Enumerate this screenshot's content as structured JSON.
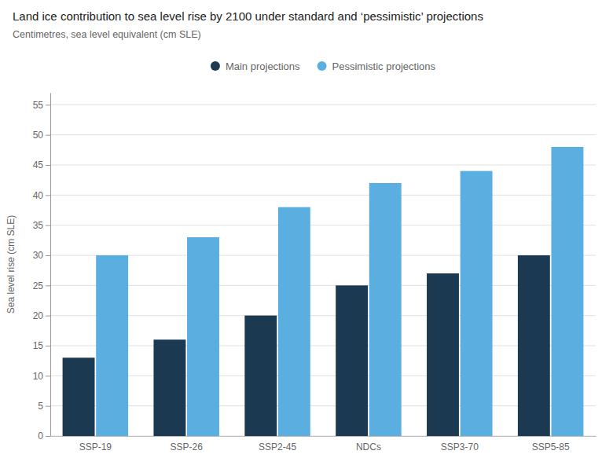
{
  "chart_data": {
    "type": "bar",
    "title": "Land ice contribution to sea level rise by 2100 under standard and ‘pessimistic’ projections",
    "subtitle": "Centimetres, sea level equivalent (cm SLE)",
    "ylabel": "Sea level rise (cm SLE)",
    "categories": [
      "SSP-19",
      "SSP-26",
      "SSP2-45",
      "NDCs",
      "SSP3-70",
      "SSP5-85"
    ],
    "series": [
      {
        "name": "Main projections",
        "color": "#1b3a52",
        "values": [
          13,
          16,
          20,
          25,
          27,
          30
        ]
      },
      {
        "name": "Pessimistic projections",
        "color": "#5aafe0",
        "values": [
          30,
          33,
          38,
          42,
          44,
          48
        ]
      }
    ],
    "ylim": [
      0,
      57
    ],
    "yticks": [
      0,
      5,
      10,
      15,
      20,
      25,
      30,
      35,
      40,
      45,
      50,
      55
    ],
    "grid": true,
    "legend": "top"
  }
}
